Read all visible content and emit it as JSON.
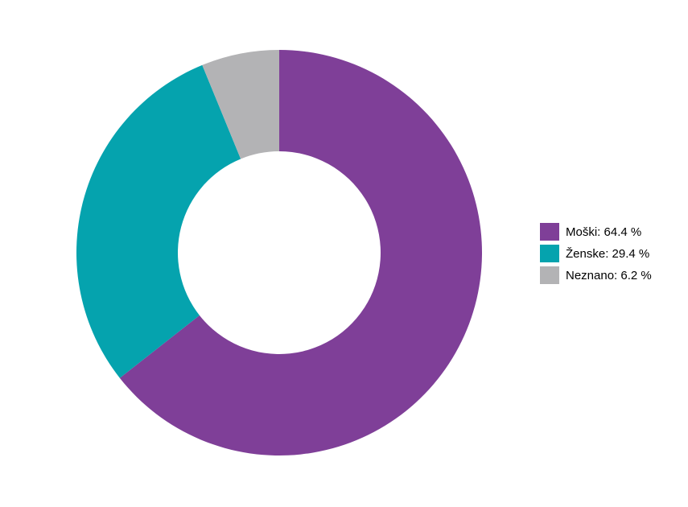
{
  "chart_data": {
    "type": "donut",
    "categories": [
      "Moški: 64.4 %",
      "Ženske: 29.4 %",
      "Neznano: 6.2 %"
    ],
    "values": [
      64.4,
      29.4,
      6.2
    ],
    "colors": [
      "#7f3f98",
      "#05a3ae",
      "#b3b3b5"
    ],
    "legend": "right"
  }
}
